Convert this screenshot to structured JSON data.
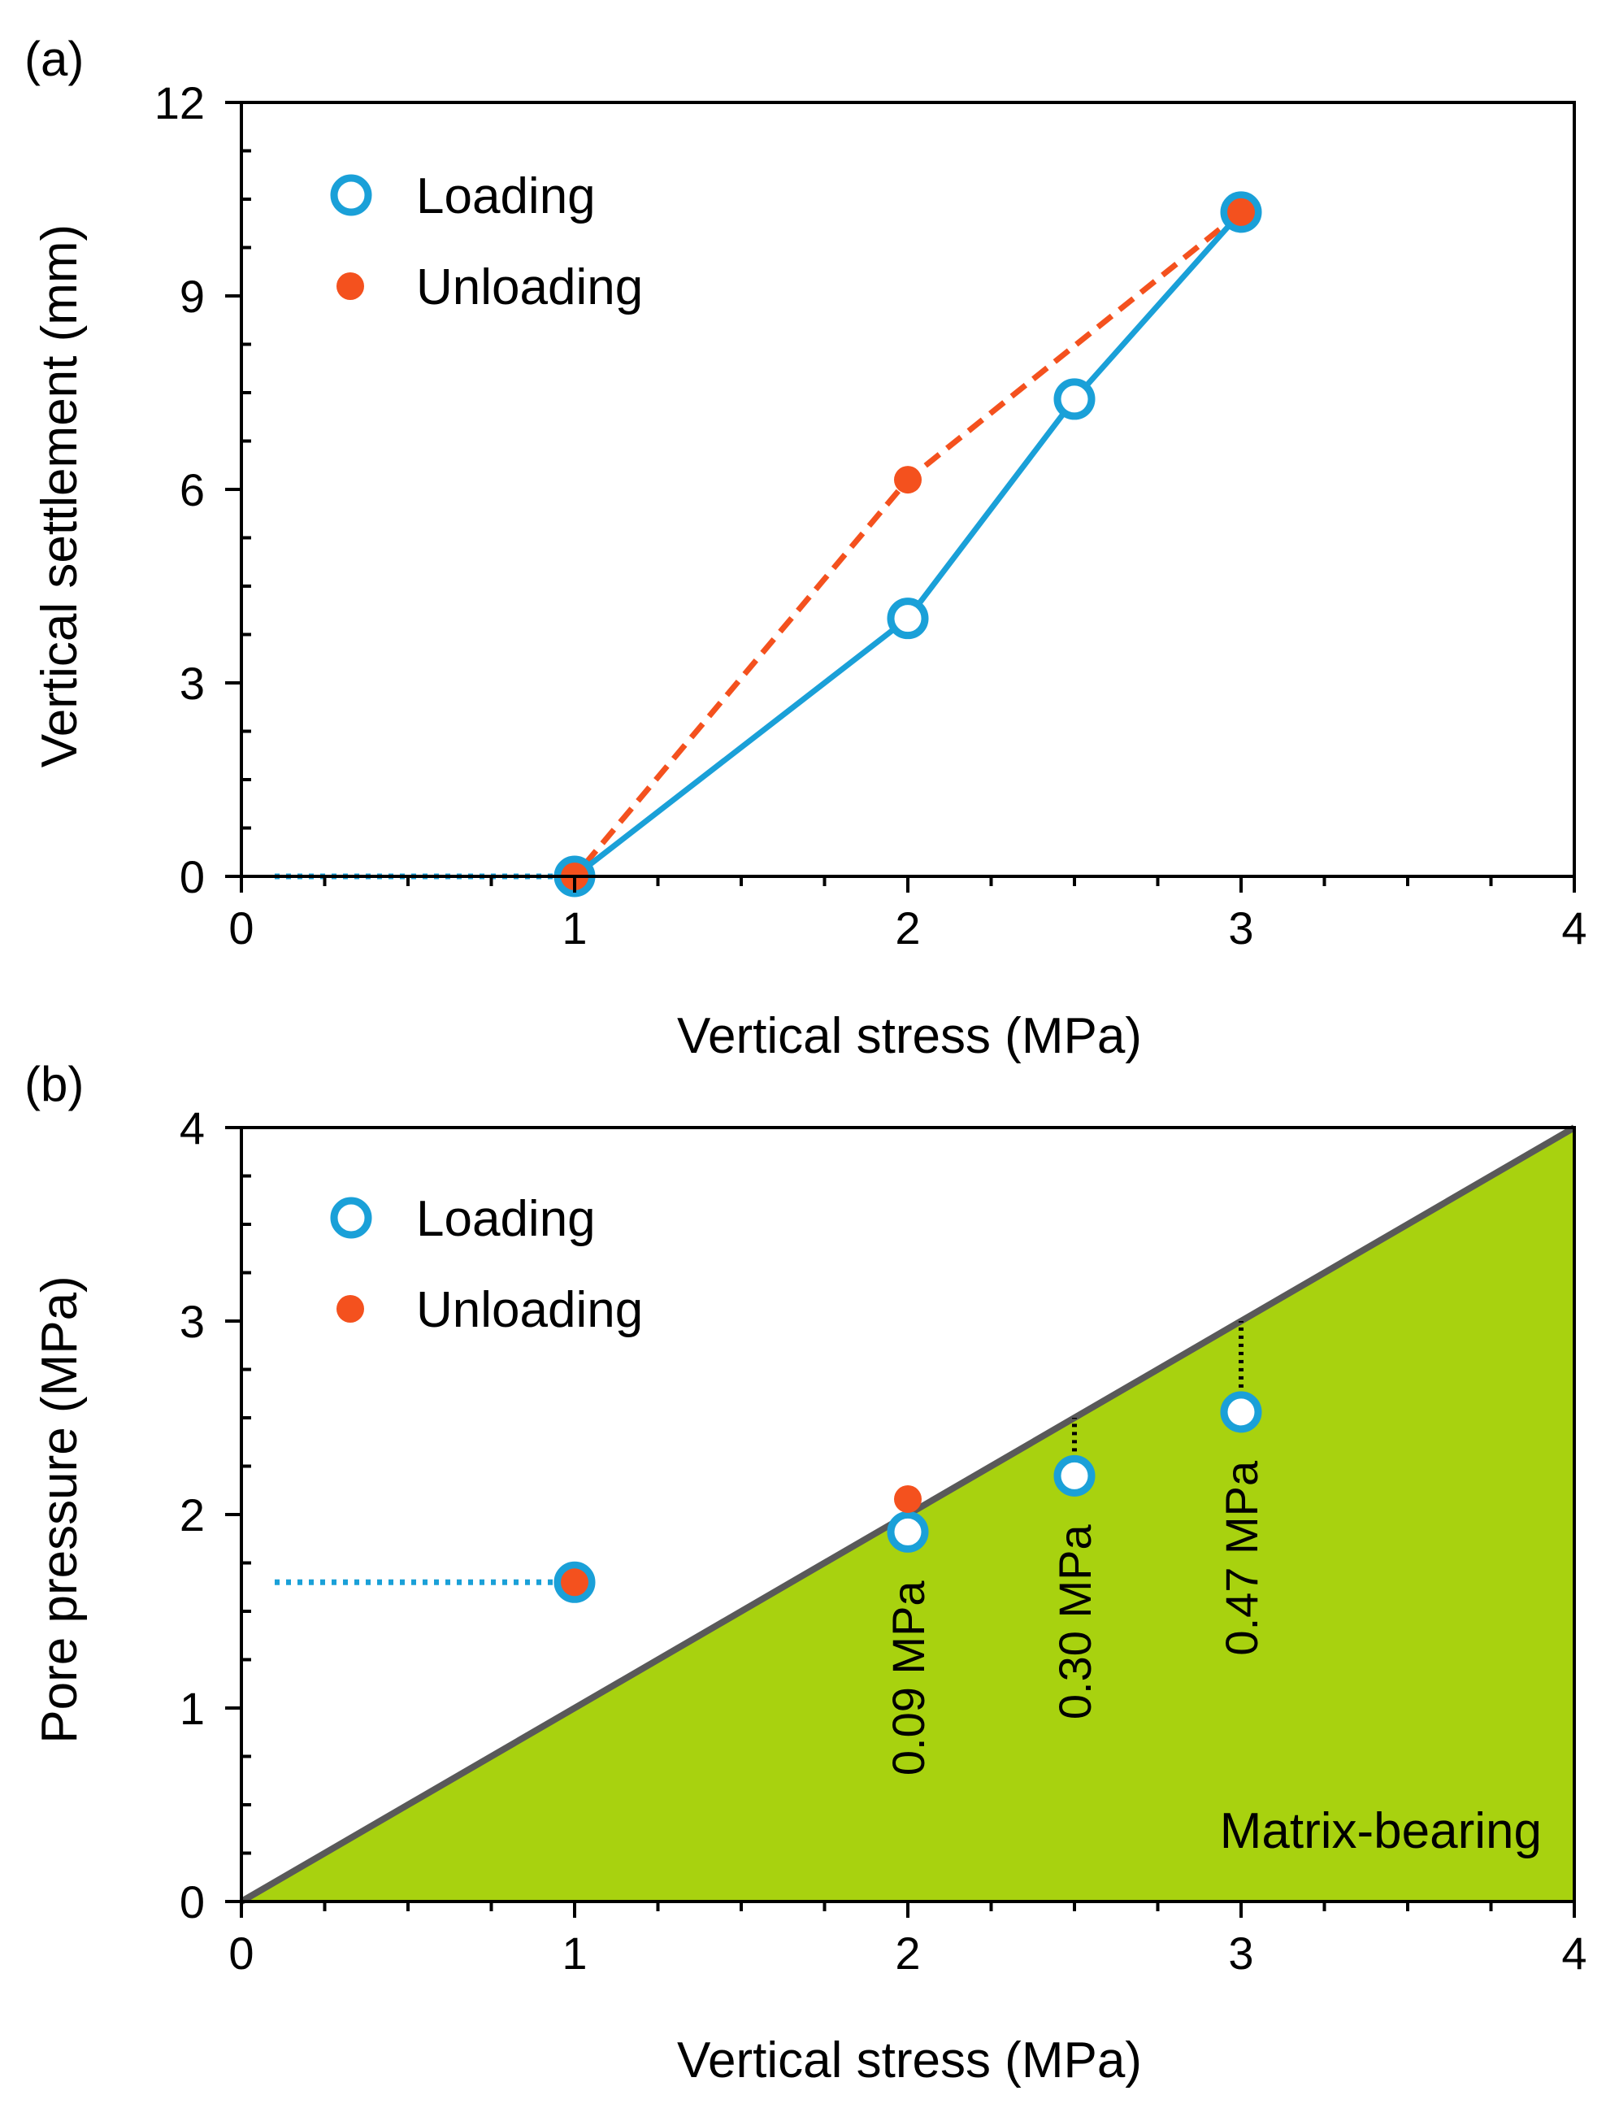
{
  "colors": {
    "loading": "#1AA0D8",
    "unloading": "#F4511E",
    "matrix_fill": "#A8D20F",
    "diagonal_line": "#595959",
    "axis": "#000000",
    "annotation_dots": "#000000"
  },
  "chart_data": [
    {
      "panel_label": "(a)",
      "type": "line",
      "xlabel": "Vertical stress (MPa)",
      "ylabel": "Vertical settlement (mm)",
      "xlim": [
        0,
        4
      ],
      "ylim": [
        0,
        12
      ],
      "x_ticks": [
        "0",
        "1",
        "2",
        "3",
        "4"
      ],
      "y_ticks": [
        "0",
        "3",
        "6",
        "9",
        "12"
      ],
      "legend": {
        "position": "top-left",
        "entries": [
          "Loading",
          "Unloading"
        ]
      },
      "series": [
        {
          "name": "Loading",
          "style": "solid-line-open-circle",
          "x": [
            1,
            2,
            2.5,
            3
          ],
          "y": [
            0,
            4.0,
            7.4,
            10.3
          ]
        },
        {
          "name": "Unloading",
          "style": "dashed-line-filled-circle",
          "x": [
            3,
            2,
            1
          ],
          "y": [
            10.3,
            6.15,
            0
          ]
        },
        {
          "name": "Loading (pre-1 MPa)",
          "style": "dotted-line",
          "x": [
            0.1,
            1
          ],
          "y": [
            0,
            0
          ]
        }
      ]
    },
    {
      "panel_label": "(b)",
      "type": "scatter",
      "xlabel": "Vertical stress (MPa)",
      "ylabel": "Pore pressure (MPa)",
      "xlim": [
        0,
        4
      ],
      "ylim": [
        0,
        4
      ],
      "x_ticks": [
        "0",
        "1",
        "2",
        "3",
        "4"
      ],
      "y_ticks": [
        "0",
        "1",
        "2",
        "3",
        "4"
      ],
      "legend": {
        "position": "top-left",
        "entries": [
          "Loading",
          "Unloading"
        ]
      },
      "region_label": "Matrix-bearing",
      "reference_line": {
        "x": [
          0,
          4
        ],
        "y": [
          0,
          4
        ]
      },
      "series": [
        {
          "name": "Loading",
          "style": "open-circle",
          "x": [
            1,
            2,
            2.5,
            3
          ],
          "y": [
            1.65,
            1.91,
            2.2,
            2.53
          ]
        },
        {
          "name": "Unloading",
          "style": "filled-circle",
          "x": [
            1,
            2
          ],
          "y": [
            1.65,
            2.08
          ]
        },
        {
          "name": "Loading (pre-1 MPa)",
          "style": "dotted-line",
          "x": [
            0.1,
            1
          ],
          "y": [
            1.65,
            1.65
          ]
        }
      ],
      "annotations": [
        {
          "text": "0.09 MPa",
          "x": 2,
          "y_from": 1.91,
          "y_to": 2.0
        },
        {
          "text": "0.30 MPa",
          "x": 2.5,
          "y_from": 2.2,
          "y_to": 2.5
        },
        {
          "text": "0.47 MPa",
          "x": 3,
          "y_from": 2.53,
          "y_to": 3.0
        }
      ]
    }
  ]
}
